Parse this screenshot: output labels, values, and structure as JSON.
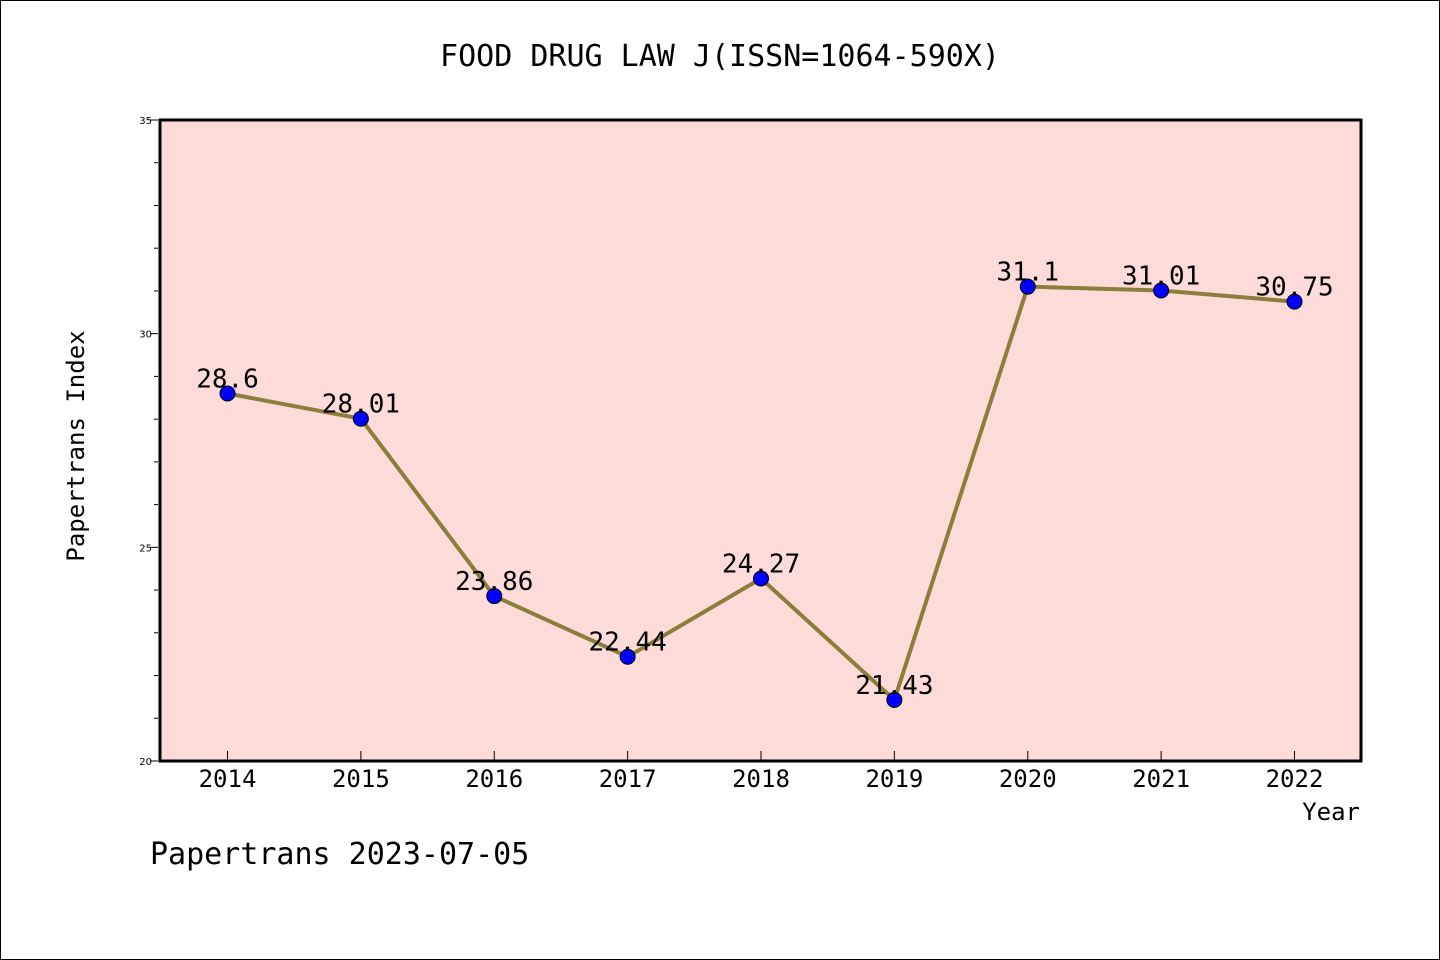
{
  "chart_data": {
    "type": "line",
    "title": "FOOD DRUG LAW J(ISSN=1064-590X)",
    "xlabel": "Year",
    "ylabel": "Papertrans Index",
    "categories": [
      "2014",
      "2015",
      "2016",
      "2017",
      "2018",
      "2019",
      "2020",
      "2021",
      "2022"
    ],
    "values": [
      28.6,
      28.01,
      23.86,
      22.44,
      24.27,
      21.43,
      31.1,
      31.01,
      30.75
    ],
    "data_labels": [
      "28.6",
      "28.01",
      "23.86",
      "22.44",
      "24.27",
      "21.43",
      "31.1",
      "31.01",
      "30.75"
    ],
    "ylim": [
      20,
      35
    ],
    "yticks": [
      "20",
      "25",
      "30",
      "35"
    ],
    "grid": false,
    "line_color": "#8b7d3a",
    "marker_color": "#0000ff",
    "plot_background": "#fddbd9"
  },
  "footer": "Papertrans 2023-07-05"
}
